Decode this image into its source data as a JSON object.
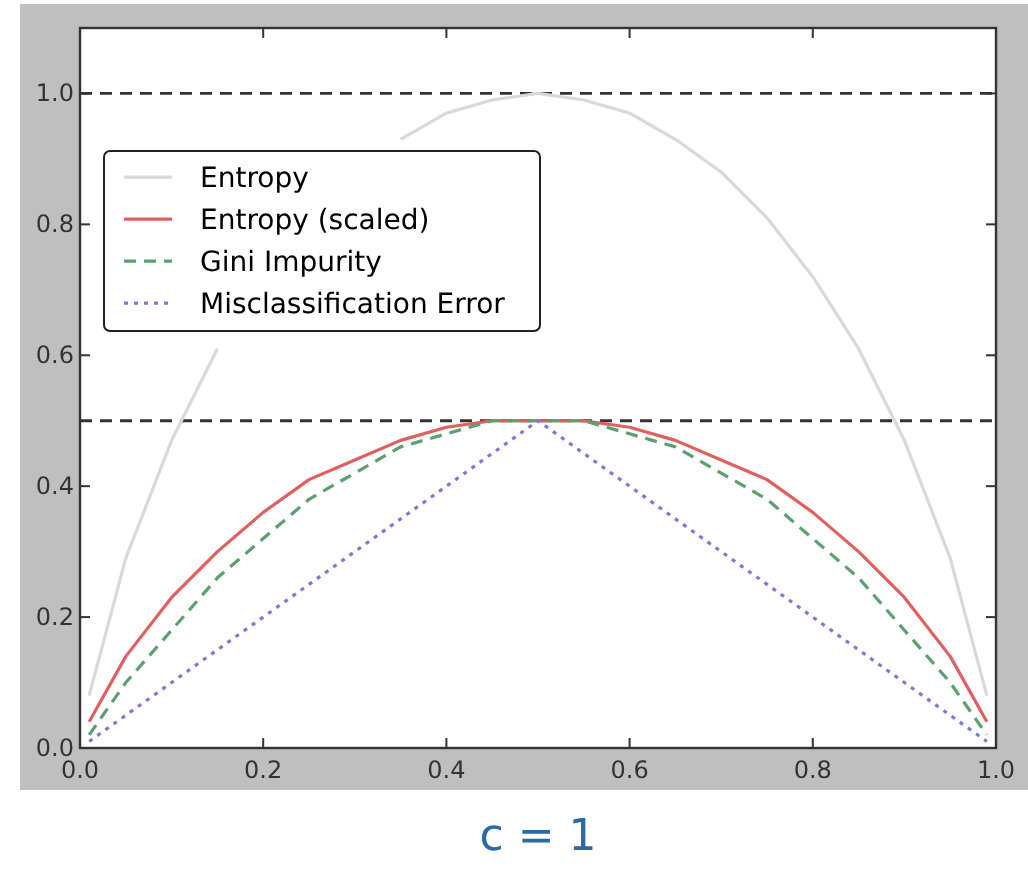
{
  "chart_data": {
    "type": "line",
    "x": [
      0.01,
      0.05,
      0.1,
      0.15,
      0.2,
      0.25,
      0.3,
      0.35,
      0.4,
      0.45,
      0.5,
      0.55,
      0.6,
      0.65,
      0.7,
      0.75,
      0.8,
      0.85,
      0.9,
      0.95,
      0.99
    ],
    "series": [
      {
        "name": "Entropy",
        "color": "#d9d9d9",
        "line_style": "solid",
        "values": [
          0.08,
          0.29,
          0.47,
          0.61,
          null,
          null,
          null,
          0.93,
          0.97,
          0.99,
          1.0,
          0.99,
          0.97,
          0.93,
          0.88,
          0.81,
          0.72,
          0.61,
          0.47,
          0.29,
          0.08
        ]
      },
      {
        "name": "Entropy (scaled)",
        "color": "#e06060",
        "line_style": "solid",
        "values": [
          0.04,
          0.14,
          0.23,
          0.3,
          0.36,
          0.41,
          0.44,
          0.47,
          0.49,
          0.5,
          0.5,
          0.5,
          0.49,
          0.47,
          0.44,
          0.41,
          0.36,
          0.3,
          0.23,
          0.14,
          0.04
        ]
      },
      {
        "name": "Gini Impurity",
        "color": "#5aa070",
        "line_style": "dashed",
        "values": [
          0.02,
          0.1,
          0.18,
          0.26,
          0.32,
          0.38,
          0.42,
          0.46,
          0.48,
          0.5,
          0.5,
          0.5,
          0.48,
          0.46,
          0.42,
          0.38,
          0.32,
          0.26,
          0.18,
          0.1,
          0.02
        ]
      },
      {
        "name": "Misclassification Error",
        "color": "#7a7ad8",
        "line_style": "dotted",
        "values": [
          0.01,
          0.05,
          0.1,
          0.15,
          0.2,
          0.25,
          0.3,
          0.35,
          0.4,
          0.45,
          0.5,
          0.45,
          0.4,
          0.35,
          0.3,
          0.25,
          0.2,
          0.15,
          0.1,
          0.05,
          0.01
        ]
      }
    ],
    "xlim": [
      0,
      1
    ],
    "xticks": [
      {
        "value": 0,
        "label": "0.0"
      },
      0.2,
      0.4,
      0.6,
      0.8,
      {
        "value": 1,
        "label": "1.0"
      }
    ],
    "ylim": [
      0,
      1.1
    ],
    "yticks": [
      {
        "value": 0,
        "label": "0.0"
      },
      0.2,
      0.4,
      0.6,
      0.8,
      {
        "value": 1,
        "label": "1.0"
      }
    ],
    "ref_lines": [
      {
        "axis": "y",
        "value": 1.0,
        "color": "#333333",
        "line_style": "dashed"
      },
      {
        "axis": "y",
        "value": 0.5,
        "color": "#333333",
        "line_style": "dashed"
      }
    ],
    "legend": "top left",
    "grid": false,
    "annotations": [
      "c = 1"
    ]
  }
}
